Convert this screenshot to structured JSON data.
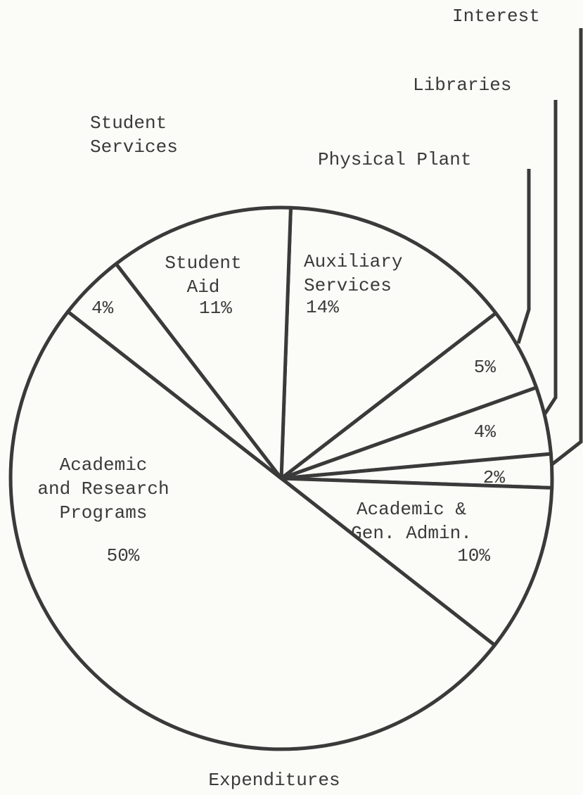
{
  "chart_data": {
    "type": "pie",
    "title": "Expenditures",
    "categories": [
      "Auxiliary\nServices",
      "Physical Plant",
      "Libraries",
      "Interest",
      "Academic &\nGen. Admin.",
      "Academic\nand Research\nPrograms",
      "Student\nServices",
      "Student\nAid"
    ],
    "values": [
      14,
      5,
      4,
      2,
      10,
      50,
      4,
      11
    ],
    "value_labels": [
      "14%",
      "5%",
      "4%",
      "2%",
      "10%",
      "50%",
      "4%",
      "11%"
    ],
    "color": "#fbfbf7"
  }
}
